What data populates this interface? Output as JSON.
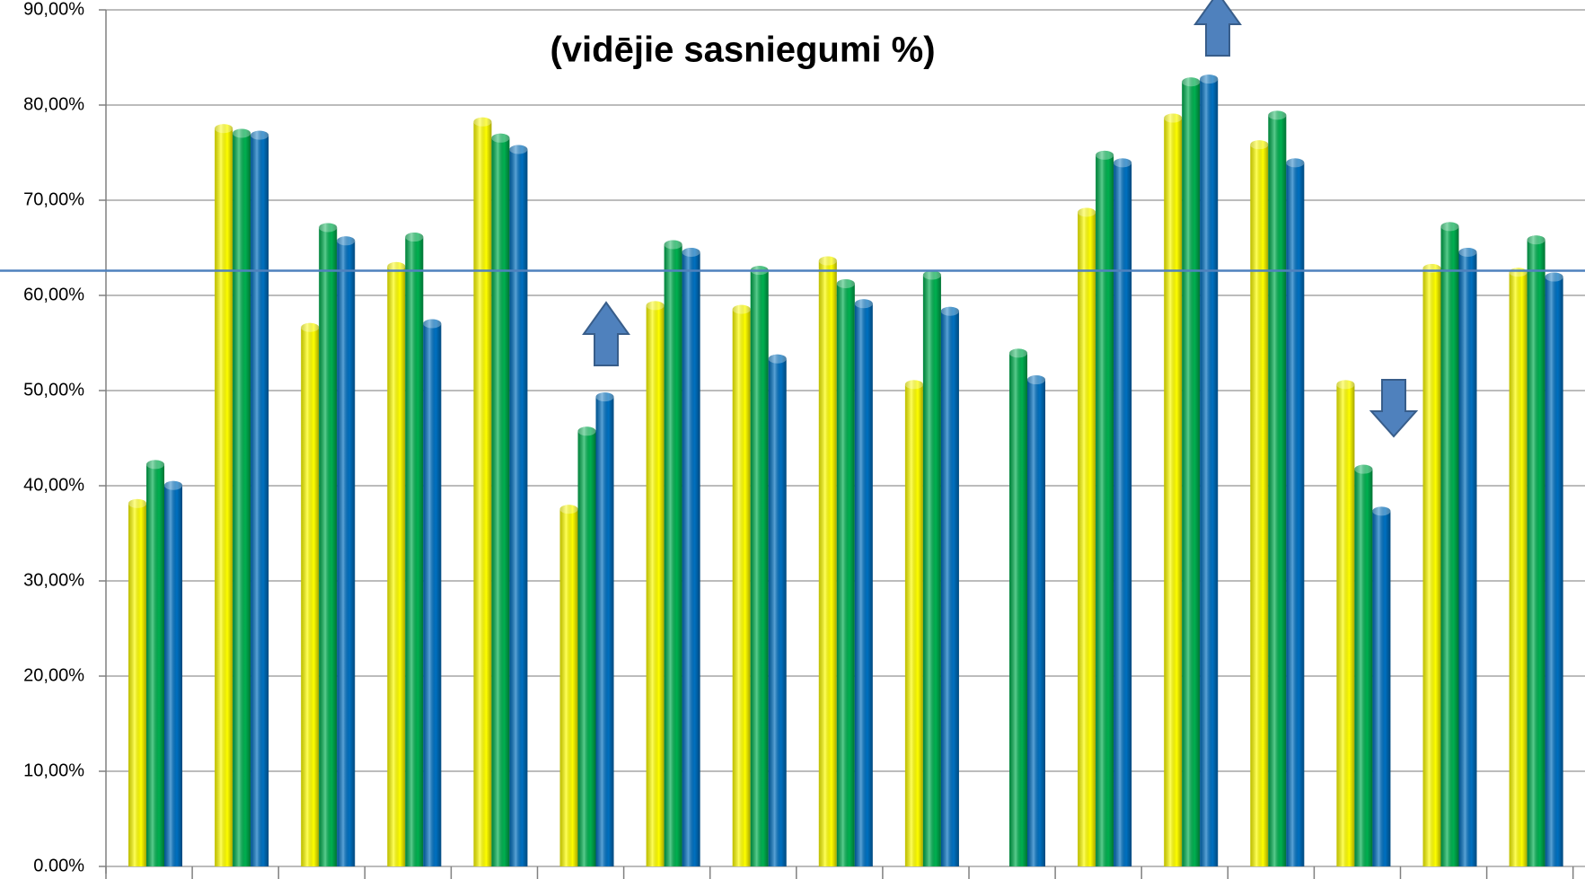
{
  "chart_data": {
    "type": "bar",
    "title": "(vidējie sasniegumi %)",
    "categories": [
      null,
      null,
      null,
      null,
      null,
      null,
      null,
      null,
      null,
      null,
      null,
      null,
      null,
      null,
      null,
      null,
      null
    ],
    "series": [
      {
        "color": "#ffff00",
        "values": [
          38.6,
          78.0,
          57.1,
          63.5,
          78.7,
          38.0,
          59.4,
          59.0,
          64.1,
          51.1,
          null,
          69.2,
          79.1,
          76.3,
          51.1,
          63.3,
          62.9
        ]
      },
      {
        "color": "#00b050",
        "values": [
          42.7,
          77.5,
          67.6,
          66.6,
          77.0,
          46.2,
          65.8,
          63.1,
          61.7,
          62.6,
          54.4,
          75.2,
          82.9,
          79.4,
          42.2,
          67.7,
          66.3
        ]
      },
      {
        "color": "#0070c0",
        "values": [
          40.5,
          77.3,
          66.2,
          57.5,
          75.8,
          49.8,
          65.0,
          53.8,
          59.6,
          58.8,
          51.6,
          74.4,
          83.2,
          74.4,
          37.8,
          65.0,
          62.4
        ]
      }
    ],
    "ylim": [
      0,
      90
    ],
    "yticks": [
      {
        "value": 0,
        "label": "0.00%"
      },
      {
        "value": 10,
        "label": "10,00%"
      },
      {
        "value": 20,
        "label": "20,00%"
      },
      {
        "value": 30,
        "label": "30,00%"
      },
      {
        "value": 40,
        "label": "40,00%"
      },
      {
        "value": 50,
        "label": "50,00%"
      },
      {
        "value": 60,
        "label": "60,00%"
      },
      {
        "value": 70,
        "label": "70,00%"
      },
      {
        "value": 80,
        "label": "80,00%"
      },
      {
        "value": 90,
        "label": "90,00%"
      }
    ],
    "grid": true,
    "reference_line": 62.6,
    "reference_color": "#4f81bd"
  }
}
